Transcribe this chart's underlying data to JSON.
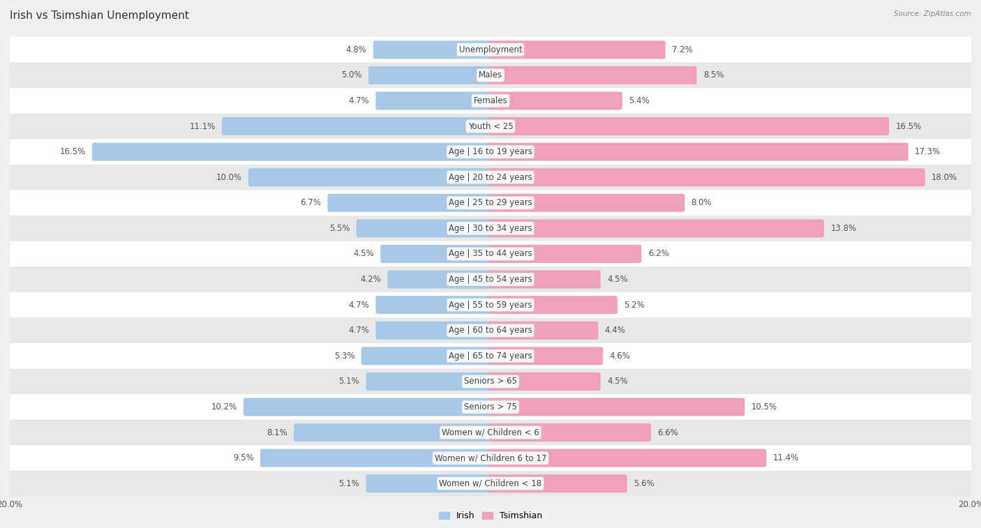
{
  "title": "Irish vs Tsimshian Unemployment",
  "source": "Source: ZipAtlas.com",
  "categories": [
    "Unemployment",
    "Males",
    "Females",
    "Youth < 25",
    "Age | 16 to 19 years",
    "Age | 20 to 24 years",
    "Age | 25 to 29 years",
    "Age | 30 to 34 years",
    "Age | 35 to 44 years",
    "Age | 45 to 54 years",
    "Age | 55 to 59 years",
    "Age | 60 to 64 years",
    "Age | 65 to 74 years",
    "Seniors > 65",
    "Seniors > 75",
    "Women w/ Children < 6",
    "Women w/ Children 6 to 17",
    "Women w/ Children < 18"
  ],
  "irish": [
    4.8,
    5.0,
    4.7,
    11.1,
    16.5,
    10.0,
    6.7,
    5.5,
    4.5,
    4.2,
    4.7,
    4.7,
    5.3,
    5.1,
    10.2,
    8.1,
    9.5,
    5.1
  ],
  "tsimshian": [
    7.2,
    8.5,
    5.4,
    16.5,
    17.3,
    18.0,
    8.0,
    13.8,
    6.2,
    4.5,
    5.2,
    4.4,
    4.6,
    4.5,
    10.5,
    6.6,
    11.4,
    5.6
  ],
  "irish_color": "#a8c8e8",
  "tsimshian_color": "#f0a0bc",
  "max_val": 20.0,
  "bg_color": "#f0f0f0",
  "row_color_light": "#ffffff",
  "row_color_dark": "#e8e8e8",
  "label_fontsize": 8.5,
  "value_fontsize": 8.5,
  "title_fontsize": 11
}
